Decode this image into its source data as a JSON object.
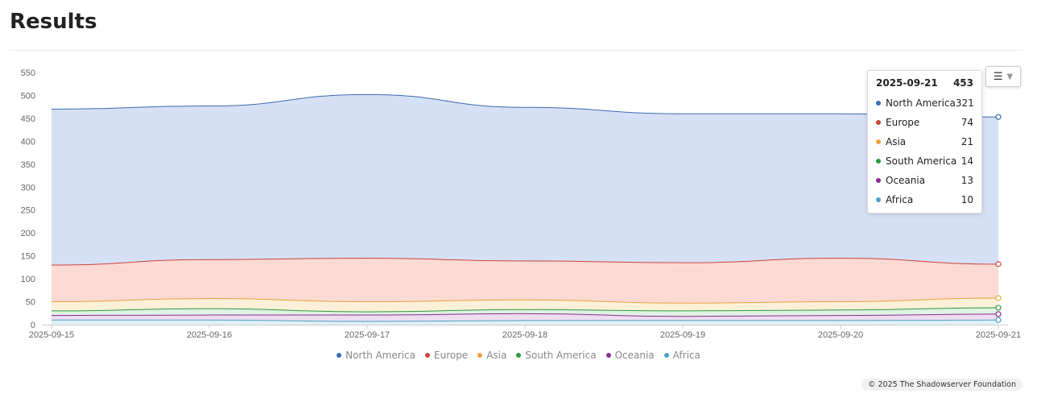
{
  "page": {
    "title": "Results",
    "footer": "© 2025 The Shadowserver Foundation"
  },
  "menu": {
    "icon": "hamburger-icon"
  },
  "tooltip": {
    "date": "2025-09-21",
    "total": "453",
    "rows": [
      {
        "name": "North America",
        "value": "321",
        "color": "#3b6bb0"
      },
      {
        "name": "Europe",
        "value": "74",
        "color": "#c8473a"
      },
      {
        "name": "Asia",
        "value": "21",
        "color": "#e8a33c"
      },
      {
        "name": "South America",
        "value": "14",
        "color": "#2e9a3f"
      },
      {
        "name": "Oceania",
        "value": "13",
        "color": "#8b2c92"
      },
      {
        "name": "Africa",
        "value": "10",
        "color": "#4aa3c9"
      }
    ]
  },
  "chart_data": {
    "type": "area",
    "stacked": true,
    "x": [
      "2025-09-15",
      "2025-09-16",
      "2025-09-17",
      "2025-09-18",
      "2025-09-19",
      "2025-09-20",
      "2025-09-21"
    ],
    "yticks": [
      0,
      50,
      100,
      150,
      200,
      250,
      300,
      350,
      400,
      450,
      500,
      550
    ],
    "ylim": [
      0,
      550
    ],
    "grid": false,
    "legend": "bottom",
    "series": [
      {
        "name": "Africa",
        "color": "#4aa3c9",
        "fill": "#e2f1f8",
        "values": [
          10,
          10,
          7,
          9,
          9,
          9,
          10
        ]
      },
      {
        "name": "Oceania",
        "color": "#8b2c92",
        "fill": "#eedcf0",
        "values": [
          10,
          11,
          14,
          15,
          9,
          11,
          13
        ]
      },
      {
        "name": "South America",
        "color": "#2e9a3f",
        "fill": "#dff2e3",
        "values": [
          10,
          14,
          7,
          9,
          12,
          12,
          14
        ]
      },
      {
        "name": "Asia",
        "color": "#e8a33c",
        "fill": "#fdf0d8",
        "values": [
          20,
          22,
          22,
          21,
          17,
          18,
          21
        ]
      },
      {
        "name": "Europe",
        "color": "#c8473a",
        "fill": "#fbdad4",
        "values": [
          80,
          85,
          95,
          85,
          88,
          95,
          74
        ]
      },
      {
        "name": "North America",
        "color": "#3b6bb0",
        "fill": "#d6e0f5",
        "values": [
          340,
          335,
          357,
          335,
          325,
          315,
          321
        ]
      }
    ]
  }
}
